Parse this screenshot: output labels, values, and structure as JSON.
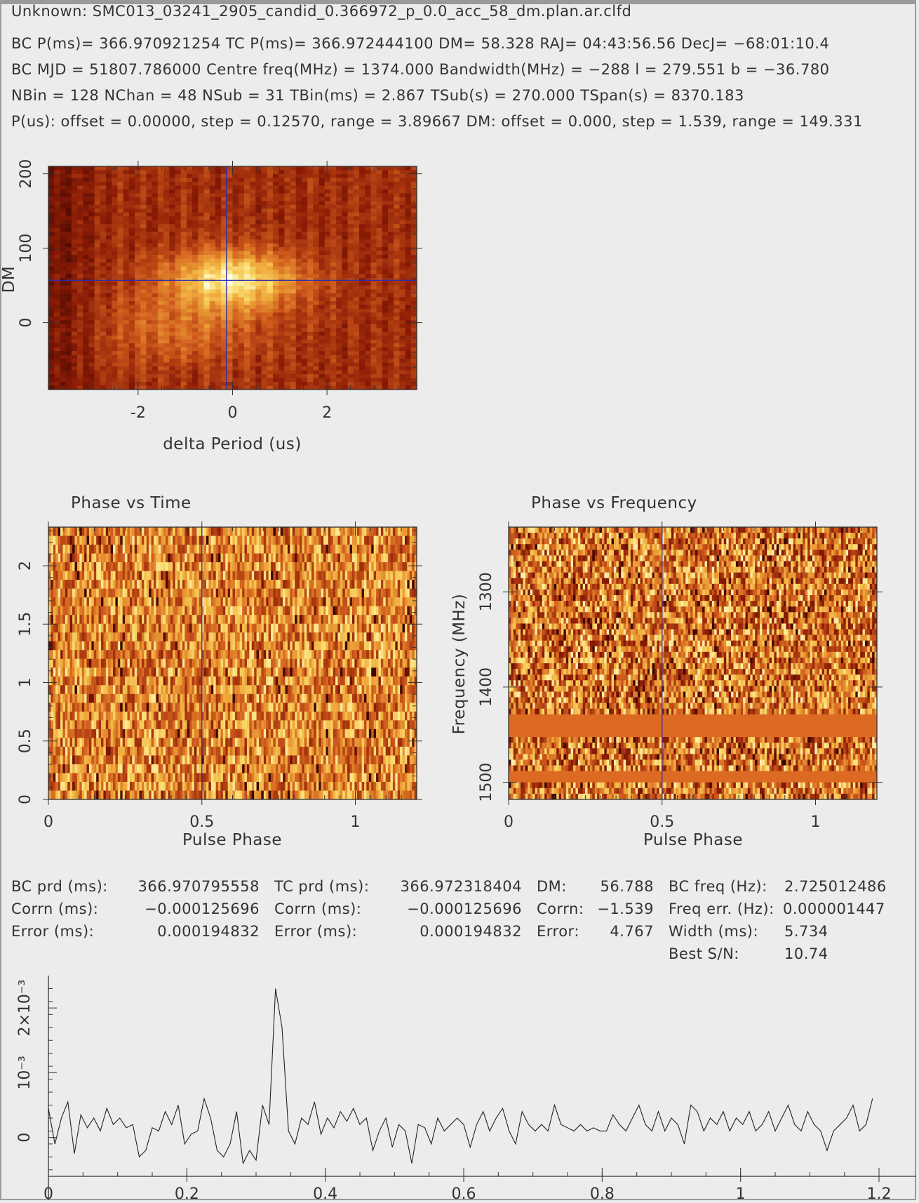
{
  "header": {
    "line0": "Unknown: SMC013_03241_2905_candid_0.366972_p_0.0_acc_58_dm.plan.ar.clfd",
    "line1": "BC P(ms)= 366.970921254 TC P(ms)= 366.972444100 DM= 58.328 RAJ= 04:43:56.56 DecJ= −68:01:10.4",
    "line2": "BC MJD = 51807.786000 Centre freq(MHz) = 1374.000 Bandwidth(MHz) = −288 l = 279.551 b = −36.780",
    "line3": "NBin = 128 NChan = 48 NSub = 31 TBin(ms) = 2.867 TSub(s) = 270.000 TSpan(s) = 8370.183",
    "line4": "P(us): offset = 0.00000, step = 0.12570, range = 3.89667 DM: offset = 0.000, step = 1.539, range = 149.331"
  },
  "results": {
    "bc_prd_label": "BC prd (ms):",
    "bc_prd_value": "366.970795558",
    "corrn_label_1": "Corrn (ms):",
    "corrn_value_1": "−0.000125696",
    "error_label_1": "Error (ms):",
    "error_value_1": "0.000194832",
    "tc_prd_label": "TC prd (ms):",
    "tc_prd_value": "366.972318404",
    "corrn_label_2": "Corrn (ms):",
    "corrn_value_2": "−0.000125696",
    "error_label_2": "Error (ms):",
    "error_value_2": "0.000194832",
    "dm_label": "DM:",
    "dm_value": "56.788",
    "dm_corrn_label": "Corrn:",
    "dm_corrn_value": "−1.539",
    "dm_error_label": "Error:",
    "dm_error_value": "4.767",
    "bc_freq_label": "BC freq (Hz):",
    "bc_freq_value": "2.725012486",
    "freq_err_label": "Freq err. (Hz):",
    "freq_err_value": "0.000001447",
    "width_label": "Width (ms):",
    "width_value": "5.734",
    "best_sn_label": "Best S/N:",
    "best_sn_value": "10.74"
  },
  "colors": {
    "cursor": "#2b2bb0",
    "heat_low": "#3a0500",
    "heat_high": "#fffde0",
    "band": "#dd6a22"
  },
  "chart_data": [
    {
      "type": "heatmap",
      "name": "period-dm-search",
      "xlabel": "delta Period (us)",
      "ylabel": "DM",
      "xlim": [
        -3.9,
        3.9
      ],
      "ylim": [
        -90,
        210
      ],
      "xticks": [
        -2,
        0,
        2
      ],
      "yticks": [
        0,
        100,
        200
      ],
      "cursor": {
        "x": -0.13,
        "y": 56.8
      },
      "peak": {
        "x": 0.0,
        "y": 58
      }
    },
    {
      "type": "heatmap",
      "title": "Phase vs Time",
      "xlabel": "Pulse Phase",
      "ylabel": "",
      "xlim": [
        0,
        1.2
      ],
      "ylim": [
        0,
        2.33
      ],
      "xticks": [
        0,
        0.5,
        1
      ],
      "yticks": [
        0,
        0.5,
        1,
        1.5,
        2
      ],
      "cursor_x": 0.5
    },
    {
      "type": "heatmap",
      "title": "Phase vs Frequency",
      "xlabel": "Pulse Phase",
      "ylabel": "Frequency (MHz)",
      "xlim": [
        0,
        1.2
      ],
      "ylim": [
        1518,
        1232
      ],
      "xticks": [
        0,
        0.5,
        1
      ],
      "yticks": [
        1300,
        1400,
        1500
      ],
      "cursor_x": 0.5,
      "flagged_bands_mhz": [
        [
          1431,
          1455
        ],
        [
          1490,
          1500
        ]
      ]
    },
    {
      "type": "line",
      "name": "pulse-profile",
      "xlabel": "",
      "ylabel": "",
      "xlim": [
        0,
        1.2
      ],
      "ylim": [
        -0.0006,
        0.0025
      ],
      "xticks": [
        0,
        0.2,
        0.4,
        0.6,
        0.8,
        1,
        1.2
      ],
      "ytick_labels": [
        "0",
        "10⁻³",
        "2×10⁻³"
      ],
      "ytick_values": [
        0,
        0.001,
        0.002
      ],
      "n_bins": 128,
      "x_step": 0.009375,
      "y": [
        0.00045,
        -0.0001,
        0.0003,
        0.00055,
        -0.00025,
        0.00035,
        0.00015,
        0.0003,
        0.0001,
        0.00045,
        0.0002,
        0.0003,
        0.00015,
        0.0002,
        -0.0003,
        -0.0002,
        0.00015,
        0.0001,
        0.0004,
        0.0002,
        0.0005,
        -0.0001,
        5e-05,
        0.0001,
        0.0006,
        0.0003,
        -0.0002,
        -0.0003,
        -0.0001,
        0.0004,
        -0.0004,
        -0.0002,
        -0.00035,
        0.0005,
        0.0002,
        0.0023,
        0.0017,
        0.0001,
        -0.0001,
        0.0003,
        0.0002,
        0.00055,
        5e-05,
        0.0003,
        0.00015,
        0.0004,
        0.00025,
        0.00045,
        0.0002,
        0.0003,
        -0.0002,
        0.0001,
        0.0003,
        -0.00015,
        0.0002,
        0.0001,
        -0.0004,
        0.0002,
        0.00015,
        -0.0001,
        0.0003,
        0.0001,
        0.0002,
        0.0003,
        0.0002,
        -0.00015,
        0.0002,
        0.0004,
        0.0001,
        0.0003,
        0.00045,
        0.0001,
        -0.0001,
        0.0004,
        0.0002,
        0.0001,
        0.0002,
        0.0001,
        0.0005,
        0.0002,
        0.00015,
        0.0001,
        0.0002,
        0.0001,
        0.00015,
        0.0001,
        0.0001,
        0.00035,
        0.0002,
        0.0001,
        0.0003,
        0.0005,
        0.0002,
        0.0001,
        0.0004,
        0.0001,
        0.0003,
        0.0002,
        -0.0001,
        0.0005,
        0.0004,
        0.0001,
        0.0003,
        0.0002,
        0.0004,
        0.0001,
        0.0003,
        0.0002,
        0.0004,
        0.0001,
        0.0002,
        0.0004,
        0.0001,
        0.0003,
        0.0005,
        0.0002,
        0.0001,
        0.0004,
        0.0002,
        0.0001,
        -0.0002,
        0.0001,
        0.0002,
        0.0003,
        0.0005,
        0.0001,
        0.0002,
        0.0006
      ]
    }
  ]
}
